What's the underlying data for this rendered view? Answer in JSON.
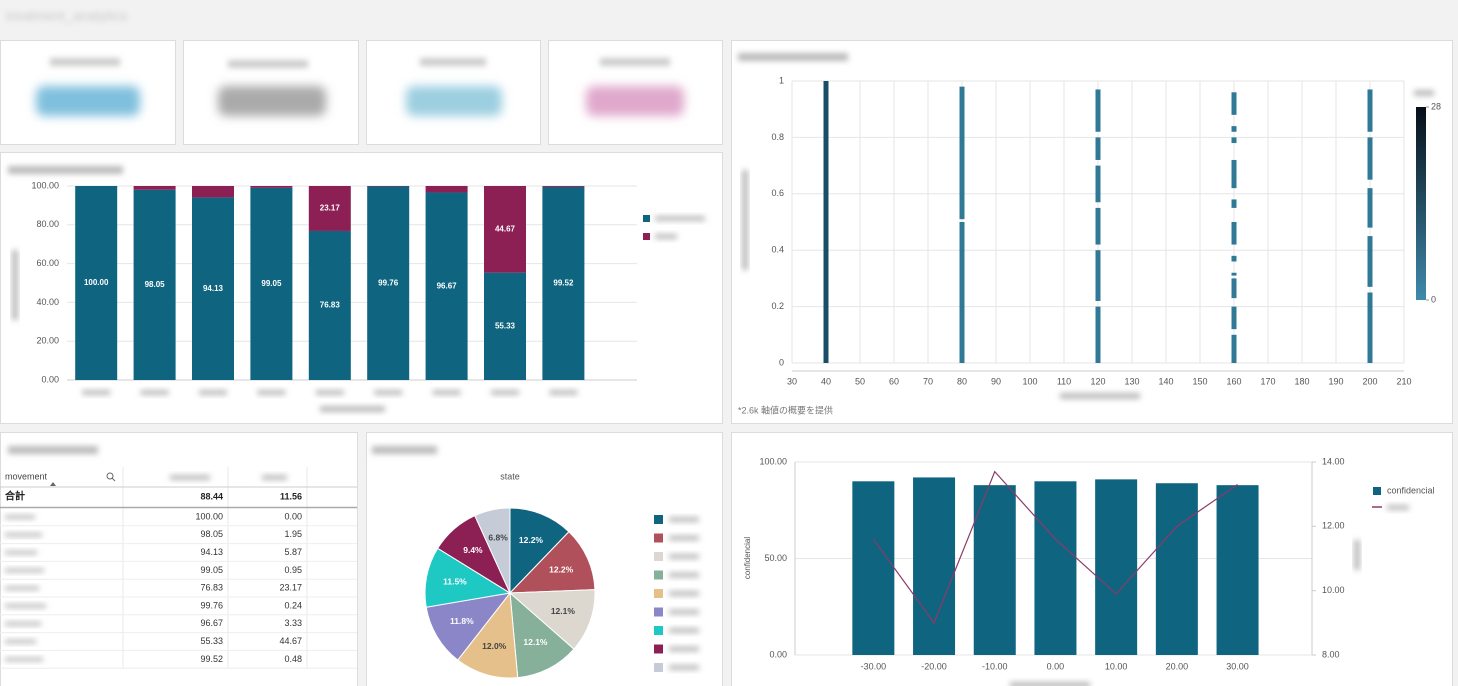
{
  "title": "treatment_analytics",
  "chart_data": [
    {
      "type": "bar",
      "stacked": true,
      "categories": [
        null,
        null,
        null,
        null,
        null,
        null,
        null,
        null,
        null
      ],
      "series": [
        {
          "color": "#0f6480",
          "values": [
            100,
            98.05,
            94.13,
            99.05,
            76.83,
            99.76,
            96.67,
            55.33,
            99.52
          ],
          "value_labels": [
            "100.00",
            "98.05",
            "94.13",
            "99.05",
            "76.83",
            "99.76",
            "96.67",
            "55.33",
            "99.52"
          ]
        },
        {
          "color": "#8c2055",
          "values": [
            0,
            1.95,
            5.87,
            0.95,
            23.17,
            0.24,
            3.33,
            44.67,
            0.48
          ],
          "value_labels": [
            null,
            null,
            null,
            null,
            "23.17",
            null,
            null,
            "44.67",
            null
          ]
        }
      ],
      "ylim": [
        0,
        100
      ],
      "yticks": [
        {
          "value": 0,
          "label": "0.00"
        },
        {
          "value": 20,
          "label": "20.00"
        },
        {
          "value": 40,
          "label": "40.00"
        },
        {
          "value": 60,
          "label": "60.00"
        },
        {
          "value": 80,
          "label": "80.00"
        },
        {
          "value": 100,
          "label": "100.00"
        }
      ],
      "grid": true
    },
    {
      "type": "scatter",
      "xlim": [
        30,
        210
      ],
      "xticks": [
        30,
        40,
        50,
        60,
        70,
        80,
        90,
        100,
        110,
        120,
        130,
        140,
        150,
        160,
        170,
        180,
        190,
        200,
        210
      ],
      "ylim": [
        0,
        1
      ],
      "yticks": [
        0,
        0.2,
        0.4,
        0.6,
        0.8,
        1
      ],
      "columns": [
        {
          "x": 40,
          "color": "#1a4d66",
          "segments": [
            [
              0,
              1
            ]
          ]
        },
        {
          "x": 80,
          "color": "#2f7896",
          "segments": [
            [
              0,
              0.5
            ],
            [
              0.51,
              0.98
            ]
          ]
        },
        {
          "x": 120,
          "color": "#2f7896",
          "segments": [
            [
              0,
              0.2
            ],
            [
              0.22,
              0.4
            ],
            [
              0.42,
              0.55
            ],
            [
              0.57,
              0.7
            ],
            [
              0.72,
              0.8
            ],
            [
              0.82,
              0.97
            ]
          ]
        },
        {
          "x": 160,
          "color": "#2f7896",
          "segments": [
            [
              0,
              0.1
            ],
            [
              0.12,
              0.2
            ],
            [
              0.23,
              0.3
            ],
            [
              0.31,
              0.32
            ],
            [
              0.36,
              0.38
            ],
            [
              0.42,
              0.5
            ],
            [
              0.55,
              0.58
            ],
            [
              0.62,
              0.72
            ],
            [
              0.78,
              0.8
            ],
            [
              0.82,
              0.84
            ],
            [
              0.88,
              0.96
            ]
          ]
        },
        {
          "x": 200,
          "color": "#2f7896",
          "segments": [
            [
              0,
              0.25
            ],
            [
              0.27,
              0.45
            ],
            [
              0.48,
              0.62
            ],
            [
              0.65,
              0.8
            ],
            [
              0.82,
              0.97
            ]
          ]
        }
      ],
      "colorbar": {
        "range": [
          0,
          28
        ],
        "ticks": [
          0,
          28
        ],
        "colors": [
          "#3f8aab",
          "#070f18"
        ]
      },
      "note": "*2.6k 軸値の概要を提供",
      "grid": true
    },
    {
      "type": "pie",
      "title": "state",
      "values": [
        12.2,
        12.2,
        12.1,
        12.1,
        12.0,
        11.8,
        11.5,
        9.4,
        6.8
      ],
      "value_labels": [
        "12.2%",
        "12.2%",
        "12.1%",
        "12.1%",
        "12.0%",
        "11.8%",
        "11.5%",
        "9.4%",
        "6.8%"
      ],
      "colors": [
        "#0f6480",
        "#b0505a",
        "#dcd7cf",
        "#86b09a",
        "#e6c08a",
        "#8b86c8",
        "#1ec8c3",
        "#8c2055",
        "#c5ccd8"
      ]
    },
    {
      "type": "bar-line",
      "categories": [
        "-30.00",
        "-20.00",
        "-10.00",
        "0.00",
        "10.00",
        "20.00",
        "30.00"
      ],
      "ylabel": "confidencial",
      "ylim": [
        0,
        100
      ],
      "yticks": [
        {
          "value": 0,
          "label": "0.00"
        },
        {
          "value": 50,
          "label": "50.00"
        },
        {
          "value": 100,
          "label": "100.00"
        }
      ],
      "y2lim": [
        8,
        14
      ],
      "y2ticks": [
        {
          "value": 8,
          "label": "8.00"
        },
        {
          "value": 10,
          "label": "10.00"
        },
        {
          "value": 12,
          "label": "12.00"
        },
        {
          "value": 14,
          "label": "14.00"
        }
      ],
      "series": [
        {
          "name": "confidencial",
          "color": "#0f6480",
          "values": [
            90,
            92,
            88,
            90,
            91,
            89,
            88
          ]
        },
        {
          "axis": "y2",
          "color": "#8c3a6a",
          "values": [
            11.6,
            9.0,
            13.7,
            11.6,
            9.9,
            12.0,
            13.3
          ]
        }
      ]
    }
  ],
  "table": {
    "header": "movement",
    "total": {
      "label": "合計",
      "values": [
        "88.44",
        "11.56"
      ]
    },
    "rows": [
      [
        "100.00",
        "0.00"
      ],
      [
        "98.05",
        "1.95"
      ],
      [
        "94.13",
        "5.87"
      ],
      [
        "99.05",
        "0.95"
      ],
      [
        "76.83",
        "23.17"
      ],
      [
        "99.76",
        "0.24"
      ],
      [
        "96.67",
        "3.33"
      ],
      [
        "55.33",
        "44.67"
      ],
      [
        "99.52",
        "0.48"
      ]
    ]
  }
}
